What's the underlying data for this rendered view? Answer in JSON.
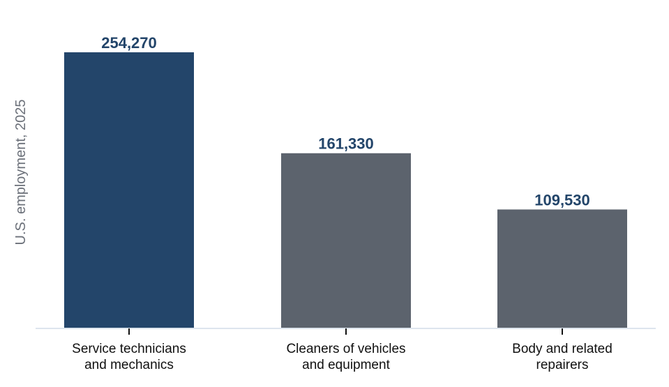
{
  "chart_data": {
    "type": "bar",
    "title": "",
    "xlabel": "",
    "ylabel": "U.S. employment, 2025",
    "categories": [
      [
        "Service technicians",
        "and mechanics"
      ],
      [
        "Cleaners of vehicles",
        "and equipment"
      ],
      [
        "Body and related",
        "repairers"
      ]
    ],
    "values": [
      254270,
      161330,
      109530
    ],
    "value_labels": [
      "254,270",
      "161,330",
      "109,530"
    ],
    "ylim": [
      0,
      254270
    ],
    "grid": false,
    "colors": {
      "highlight": "#23456a",
      "default": "#5c636d",
      "value_label": "#23456a",
      "axis": "#dde5ee",
      "tick": "#111111"
    },
    "highlight_index": 0
  }
}
